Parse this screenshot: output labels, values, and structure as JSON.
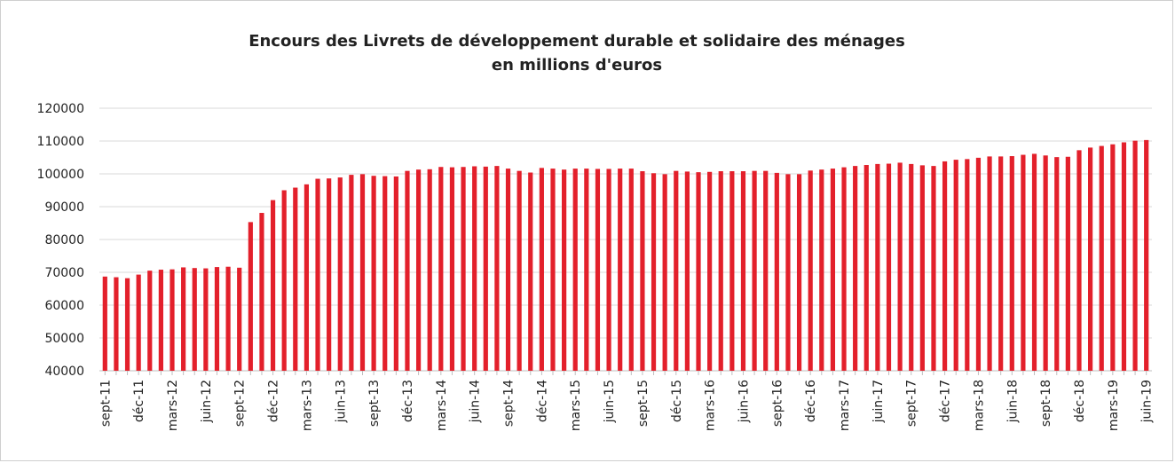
{
  "chart_data": {
    "type": "bar",
    "title": "Encours des Livrets de développement durable et solidaire des ménages",
    "subtitle": "en millions d'euros",
    "color": "#e3202b",
    "grid": true,
    "ylim": [
      40000,
      120000
    ],
    "yticks": [
      40000,
      50000,
      60000,
      70000,
      80000,
      90000,
      100000,
      110000,
      120000
    ],
    "categories": [
      "sept-11",
      null,
      null,
      "déc-11",
      null,
      null,
      "mars-12",
      null,
      null,
      "juin-12",
      null,
      null,
      "sept-12",
      null,
      null,
      "déc-12",
      null,
      null,
      "mars-13",
      null,
      null,
      "juin-13",
      null,
      null,
      "sept-13",
      null,
      null,
      "déc-13",
      null,
      null,
      "mars-14",
      null,
      null,
      "juin-14",
      null,
      null,
      "sept-14",
      null,
      null,
      "déc-14",
      null,
      null,
      "mars-15",
      null,
      null,
      "juin-15",
      null,
      null,
      "sept-15",
      null,
      null,
      "déc-15",
      null,
      null,
      "mars-16",
      null,
      null,
      "juin-16",
      null,
      null,
      "sept-16",
      null,
      null,
      "déc-16",
      null,
      null,
      "mars-17",
      null,
      null,
      "juin-17",
      null,
      null,
      "sept-17",
      null,
      null,
      "déc-17",
      null,
      null,
      "mars-18",
      null,
      null,
      "juin-18",
      null,
      null,
      "sept-18",
      null,
      null,
      "déc-18",
      null,
      null,
      "mars-19",
      null,
      null,
      "juin-19"
    ],
    "values": [
      68700,
      68500,
      68200,
      69300,
      70500,
      70800,
      70900,
      71500,
      71300,
      71200,
      71600,
      71700,
      71400,
      85300,
      88100,
      92000,
      95000,
      95800,
      96800,
      98500,
      98600,
      98900,
      99700,
      99900,
      99400,
      99300,
      99200,
      100900,
      101300,
      101400,
      102100,
      102000,
      102100,
      102300,
      102200,
      102400,
      101600,
      100900,
      100400,
      101800,
      101600,
      101300,
      101600,
      101600,
      101500,
      101500,
      101600,
      101600,
      100800,
      100200,
      99900,
      100900,
      100700,
      100500,
      100600,
      100800,
      100800,
      100800,
      100900,
      100900,
      100300,
      99900,
      99900,
      101000,
      101300,
      101600,
      102000,
      102400,
      102700,
      103000,
      103100,
      103400,
      103000,
      102600,
      102400,
      103800,
      104300,
      104500,
      104900,
      105300,
      105300,
      105400,
      105800,
      106100,
      105600,
      105100,
      105200,
      107200,
      108000,
      108500,
      109000,
      109600,
      110100,
      110300
    ]
  }
}
